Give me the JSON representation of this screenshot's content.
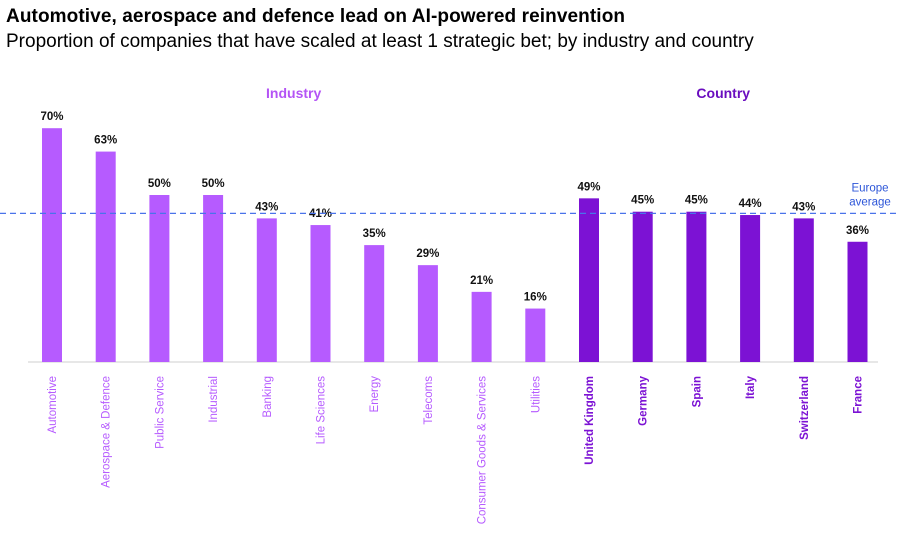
{
  "title": "Automotive, aerospace and defence lead on AI-powered reinvention",
  "subtitle": "Proportion of companies that have scaled at least 1 strategic bet; by industry and country",
  "colors": {
    "industry": "#b65bff",
    "country": "#7c12d4",
    "industry_label": "#b454f5",
    "country_label": "#6a0dbf",
    "average_line": "#4a73ea",
    "average_label": "#2d56d8"
  },
  "chart_data": {
    "type": "bar",
    "title": "Automotive, aerospace and defence lead on AI-powered reinvention",
    "subtitle": "Proportion of companies that have scaled at least 1 strategic bet; by industry and country",
    "ylim": [
      0,
      70
    ],
    "unit": "%",
    "groups": [
      {
        "name": "Industry",
        "color_key": "industry",
        "categories": [
          "Automotive",
          "Aerospace & Defence",
          "Public Service",
          "Industrial",
          "Banking",
          "Life Sciences",
          "Energy",
          "Telecoms",
          "Consumer Goods & Services",
          "Utilities"
        ],
        "values": [
          70,
          63,
          50,
          50,
          43,
          41,
          35,
          29,
          21,
          16
        ]
      },
      {
        "name": "Country",
        "color_key": "country",
        "categories": [
          "United Kingdom",
          "Germany",
          "Spain",
          "Italy",
          "Switzerland",
          "France"
        ],
        "values": [
          49,
          45,
          45,
          44,
          43,
          36
        ]
      }
    ],
    "reference_line": {
      "label_lines": [
        "Europe",
        "average"
      ],
      "value": 44.5,
      "style": "dashed"
    }
  }
}
